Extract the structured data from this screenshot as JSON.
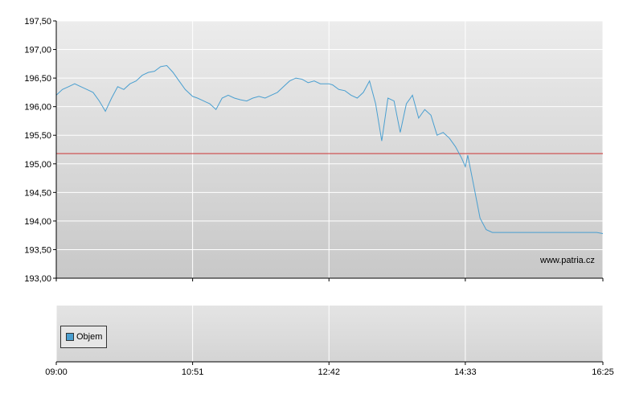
{
  "chart_data": {
    "type": "line",
    "title": "",
    "xlabel": "",
    "ylabel": "",
    "ylim": [
      193.0,
      197.5
    ],
    "y_ticks": [
      "197,50",
      "197,00",
      "196,50",
      "196,00",
      "195,50",
      "195,00",
      "194,50",
      "194,00",
      "193,50",
      "193,00"
    ],
    "x_ticks": [
      "09:00",
      "10:51",
      "12:42",
      "14:33",
      "16:25"
    ],
    "reference_line": 195.18,
    "colors": {
      "series": "#4a9fd0",
      "reference": "#cc3333",
      "grid": "#ffffff"
    },
    "grid": true,
    "legend": "bottom-left",
    "series": [
      {
        "name": "",
        "x": [
          "09:00",
          "09:05",
          "09:10",
          "09:15",
          "09:20",
          "09:25",
          "09:30",
          "09:35",
          "09:40",
          "09:45",
          "09:50",
          "09:55",
          "10:00",
          "10:05",
          "10:10",
          "10:15",
          "10:20",
          "10:25",
          "10:30",
          "10:35",
          "10:40",
          "10:45",
          "10:51",
          "10:55",
          "11:00",
          "11:05",
          "11:10",
          "11:15",
          "11:20",
          "11:25",
          "11:30",
          "11:35",
          "11:40",
          "11:45",
          "11:50",
          "11:55",
          "12:00",
          "12:05",
          "12:10",
          "12:15",
          "12:20",
          "12:25",
          "12:30",
          "12:35",
          "12:42",
          "12:45",
          "12:50",
          "12:55",
          "13:00",
          "13:05",
          "13:10",
          "13:15",
          "13:20",
          "13:25",
          "13:30",
          "13:35",
          "13:40",
          "13:45",
          "13:50",
          "13:55",
          "14:00",
          "14:05",
          "14:10",
          "14:15",
          "14:20",
          "14:25",
          "14:30",
          "14:33",
          "14:35",
          "14:40",
          "14:45",
          "14:50",
          "14:55",
          "15:00",
          "15:05",
          "15:10",
          "15:15",
          "15:20",
          "15:25",
          "15:30",
          "15:35",
          "15:40",
          "15:45",
          "15:50",
          "15:55",
          "16:00",
          "16:05",
          "16:10",
          "16:15",
          "16:20",
          "16:25"
        ],
        "values": [
          196.2,
          196.3,
          196.35,
          196.4,
          196.35,
          196.3,
          196.25,
          196.1,
          195.92,
          196.15,
          196.35,
          196.3,
          196.4,
          196.45,
          196.55,
          196.6,
          196.62,
          196.7,
          196.72,
          196.6,
          196.45,
          196.3,
          196.18,
          196.15,
          196.1,
          196.05,
          195.95,
          196.15,
          196.2,
          196.15,
          196.12,
          196.1,
          196.15,
          196.18,
          196.15,
          196.2,
          196.25,
          196.35,
          196.45,
          196.5,
          196.48,
          196.42,
          196.45,
          196.4,
          196.4,
          196.38,
          196.3,
          196.28,
          196.2,
          196.15,
          196.25,
          196.45,
          196.05,
          195.4,
          196.15,
          196.1,
          195.55,
          196.05,
          196.2,
          195.8,
          195.95,
          195.85,
          195.5,
          195.55,
          195.45,
          195.3,
          195.1,
          194.95,
          195.15,
          194.6,
          194.05,
          193.85,
          193.8,
          193.8,
          193.8,
          193.8,
          193.8,
          193.8,
          193.8,
          193.8,
          193.8,
          193.8,
          193.8,
          193.8,
          193.8,
          193.8,
          193.8,
          193.8,
          193.8,
          193.8,
          193.78
        ]
      }
    ],
    "volume_panel": {
      "legend_label": "Objem"
    },
    "watermark": "www.patria.cz"
  }
}
